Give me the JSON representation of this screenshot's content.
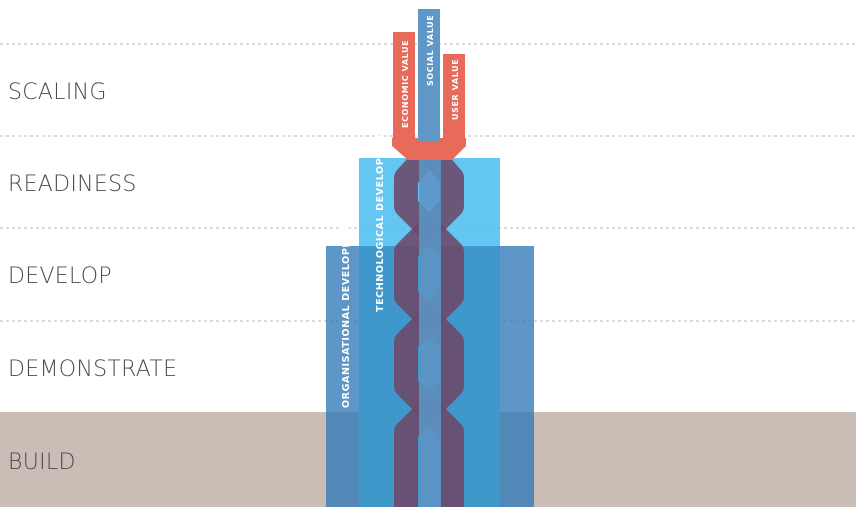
{
  "stages": [
    {
      "id": "scaling",
      "label": "SCALING"
    },
    {
      "id": "readiness",
      "label": "READINESS"
    },
    {
      "id": "develop",
      "label": "DEVELOP"
    },
    {
      "id": "demonstrate",
      "label": "DEMONSTRATE"
    },
    {
      "id": "build",
      "label": "BUILD"
    }
  ],
  "tracks": {
    "organisational": "ORGANISATIONAL DEVELOPMENT",
    "technological": "TECHNOLOGICAL DEVELOPMENT"
  },
  "outputs": {
    "economic": "ECONOMIC VALUE",
    "social": "SOCIAL VALUE",
    "user": "USER VALUE"
  },
  "colors": {
    "build_band": "#c9bdb6",
    "divider": "#b8b8b8",
    "organisational": "#2f78b7",
    "technological": "#4fbef0",
    "chain_dark": "#6b4a6b",
    "chain_blue": "#5c94c4",
    "value_red": "#e86a5a",
    "value_blue": "#5f98c6",
    "label": "#4a4a4a"
  }
}
